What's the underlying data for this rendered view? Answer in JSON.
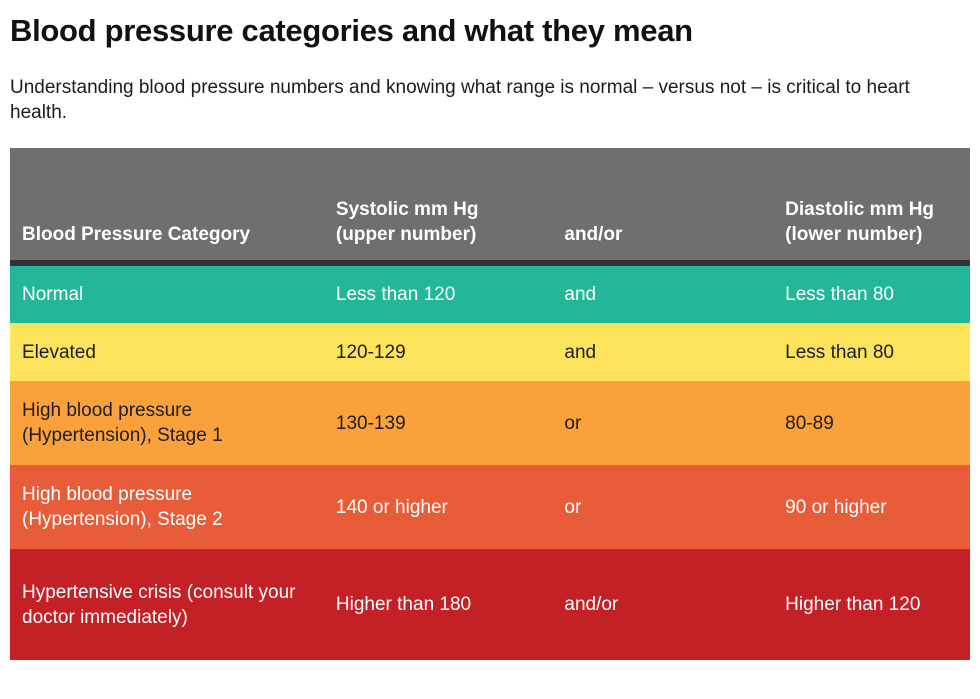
{
  "page": {
    "title": "Blood pressure categories and what they mean",
    "subtitle": "Understanding blood pressure numbers and knowing what range is normal – versus not – is critical to heart health."
  },
  "table": {
    "header": {
      "bg": "#706F6F",
      "fg": "#FFFFFF",
      "divider_color": "#333333"
    },
    "columns": [
      "Blood Pressure Category",
      "Systolic mm Hg (upper number)",
      "and/or",
      "Diastolic mm Hg (lower number)"
    ],
    "rows": [
      {
        "category": "Normal",
        "systolic": "Less than 120",
        "connector": "and",
        "diastolic": "Less than 80",
        "bg": "#21B798",
        "fg": "#FFFFFF"
      },
      {
        "category": "Elevated",
        "systolic": "120-129",
        "connector": "and",
        "diastolic": "Less than 80",
        "bg": "#FDE25C",
        "fg": "#1E1E1E"
      },
      {
        "category": "High blood pressure (Hypertension), Stage 1",
        "systolic": "130-139",
        "connector": "or",
        "diastolic": "80-89",
        "bg": "#FBA13C",
        "fg": "#1E1E1E"
      },
      {
        "category": "High blood pressure (Hypertension), Stage 2",
        "systolic": "140 or higher",
        "connector": "or",
        "diastolic": "90 or higher",
        "bg": "#E85C39",
        "fg": "#FFFFFF"
      },
      {
        "category": "Hypertensive crisis (consult your doctor immediately)",
        "systolic": "Higher than 180",
        "connector": "and/or",
        "diastolic": "Higher than 120",
        "bg": "#C42127",
        "fg": "#FFFFFF"
      }
    ]
  }
}
